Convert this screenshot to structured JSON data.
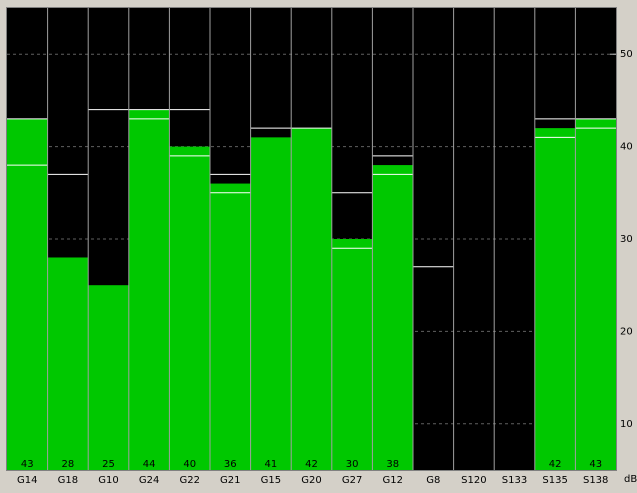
{
  "chart_data": {
    "type": "bar",
    "categories": [
      "G14",
      "G18",
      "G10",
      "G24",
      "G22",
      "G21",
      "G15",
      "G20",
      "G27",
      "G12",
      "G8",
      "S120",
      "S133",
      "S135",
      "S138"
    ],
    "values": [
      43,
      28,
      25,
      44,
      40,
      36,
      41,
      42,
      30,
      38,
      null,
      null,
      null,
      42,
      43
    ],
    "markers_high": [
      43,
      37,
      44,
      44,
      44,
      37,
      42,
      42,
      35,
      39,
      27,
      null,
      null,
      43,
      43
    ],
    "markers_low": [
      38,
      null,
      null,
      43,
      39,
      35,
      null,
      null,
      29,
      37,
      null,
      null,
      null,
      41,
      42
    ],
    "color": "#00c800",
    "ylim": [
      5,
      55
    ],
    "yticks": [
      10,
      20,
      30,
      40,
      50
    ],
    "grid": true,
    "y_label": "dB"
  }
}
